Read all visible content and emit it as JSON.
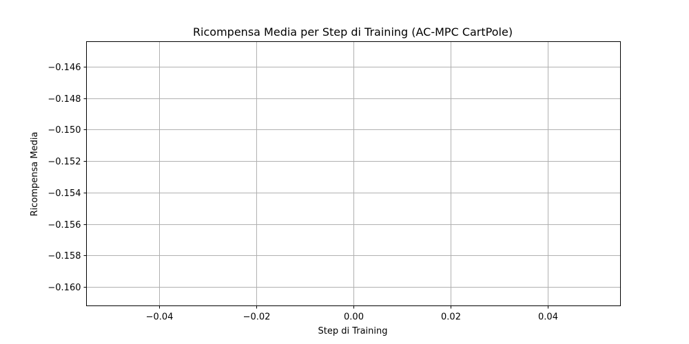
{
  "chart_data": {
    "type": "line",
    "title": "Ricompensa Media per Step di Training (AC-MPC CartPole)",
    "xlabel": "Step di Training",
    "ylabel": "Ricompensa Media",
    "xlim": [
      -0.055,
      0.055
    ],
    "ylim": [
      -0.1612,
      -0.1444
    ],
    "xticks": [
      -0.04,
      -0.02,
      0.0,
      0.02,
      0.04
    ],
    "xtick_labels": [
      "−0.04",
      "−0.02",
      "0.00",
      "0.02",
      "0.04"
    ],
    "yticks": [
      -0.146,
      -0.148,
      -0.15,
      -0.152,
      -0.154,
      -0.156,
      -0.158,
      -0.16
    ],
    "ytick_labels": [
      "−0.146",
      "−0.148",
      "−0.150",
      "−0.152",
      "−0.154",
      "−0.156",
      "−0.158",
      "−0.160"
    ],
    "grid": true,
    "series": []
  }
}
